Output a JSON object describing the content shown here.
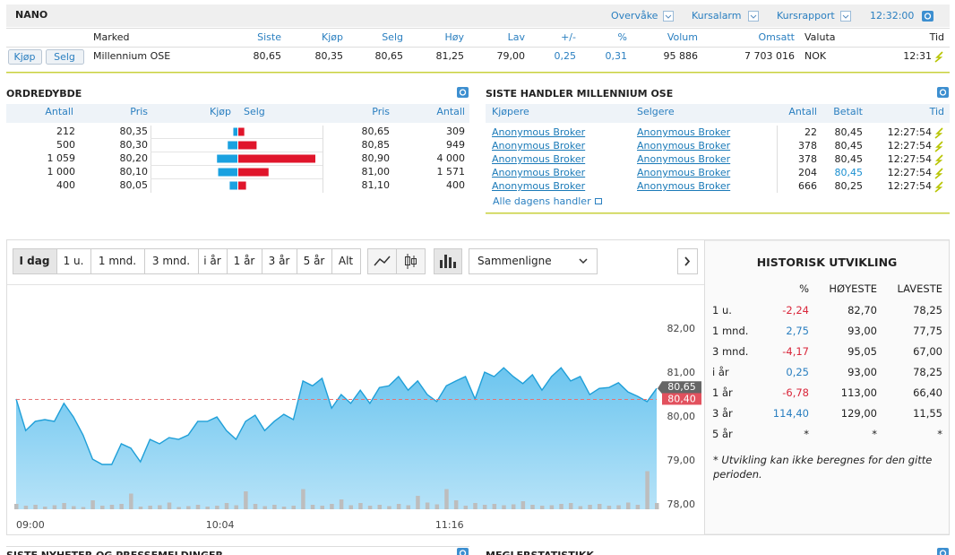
{
  "header": {
    "title": "NANO",
    "links": [
      "Overvåke",
      "Kursalarm",
      "Kursrapport"
    ],
    "time": "12:32:00"
  },
  "quote": {
    "columns": [
      "Marked",
      "Siste",
      "Kjøp",
      "Selg",
      "Høy",
      "Lav",
      "+/-",
      "%",
      "Volum",
      "Omsatt",
      "Valuta",
      "Tid"
    ],
    "buttons": [
      "Kjøp",
      "Selg"
    ],
    "row": [
      "Millennium OSE",
      "80,65",
      "80,35",
      "80,65",
      "81,25",
      "79,00",
      "0,25",
      "0,31",
      "95 886",
      "7 703 016",
      "NOK",
      "12:31"
    ]
  },
  "order_depth": {
    "title": "ORDREDYBDE",
    "columns": [
      "Antall",
      "Pris",
      "Kjøp",
      "Selg",
      "Pris",
      "Antall"
    ],
    "buy_qty": [
      212,
      500,
      1059,
      1000,
      400
    ],
    "buy_qty_labels": [
      "212",
      "500",
      "1 059",
      "1 000",
      "400"
    ],
    "buy_price": [
      "80,35",
      "80,30",
      "80,20",
      "80,10",
      "80,05"
    ],
    "sell_price": [
      "80,65",
      "80,85",
      "80,90",
      "81,00",
      "81,10"
    ],
    "sell_qty": [
      309,
      949,
      4000,
      1571,
      400
    ],
    "sell_qty_labels": [
      "309",
      "949",
      "4 000",
      "1 571",
      "400"
    ],
    "buy_color": "#1aa1e0",
    "sell_color": "#e0152b"
  },
  "trades": {
    "title": "SISTE HANDLER MILLENNIUM OSE",
    "columns": [
      "Kjøpere",
      "Selgere",
      "Antall",
      "Betalt",
      "Tid"
    ],
    "rows": [
      [
        "Anonymous Broker",
        "Anonymous Broker",
        "22",
        "80,45",
        "12:27:54"
      ],
      [
        "Anonymous Broker",
        "Anonymous Broker",
        "378",
        "80,45",
        "12:27:54"
      ],
      [
        "Anonymous Broker",
        "Anonymous Broker",
        "378",
        "80,45",
        "12:27:54"
      ],
      [
        "Anonymous Broker",
        "Anonymous Broker",
        "204",
        "80,45",
        "12:27:54"
      ],
      [
        "Anonymous Broker",
        "Anonymous Broker",
        "666",
        "80,25",
        "12:27:54"
      ]
    ],
    "price_colors": [
      "#222",
      "#222",
      "#222",
      "#1a8fd0",
      "#222"
    ],
    "link": "Alle dagens handler"
  },
  "toolbar": {
    "periods": [
      "I dag",
      "1 u.",
      "1 mnd.",
      "3 mnd.",
      "i år",
      "1 år",
      "3 år",
      "5 år",
      "Alt"
    ],
    "selected": 0,
    "compare": "Sammenligne"
  },
  "history": {
    "title": "HISTORISK UTVIKLING",
    "columns": [
      "%",
      "HØYESTE",
      "LAVESTE"
    ],
    "rows": [
      [
        "1 u.",
        "-2,24",
        "82,70",
        "78,25"
      ],
      [
        "1 mnd.",
        "2,75",
        "93,00",
        "77,75"
      ],
      [
        "3 mnd.",
        "-4,17",
        "95,05",
        "67,00"
      ],
      [
        "i år",
        "0,25",
        "93,00",
        "78,25"
      ],
      [
        "1 år",
        "-6,78",
        "113,00",
        "66,40"
      ],
      [
        "3 år",
        "114,40",
        "129,00",
        "11,55"
      ],
      [
        "5 år",
        "*",
        "*",
        "*"
      ]
    ],
    "note": "* Utvikling kan ikke beregnes for den gitte perioden."
  },
  "sections": [
    "SISTE NYHETER OG PRESSEMELDINGER",
    "MEGLERSTATISTIKK"
  ],
  "chart_data": {
    "type": "area",
    "x": [
      "09:00",
      "09:03",
      "09:06",
      "09:09",
      "09:12",
      "09:15",
      "09:18",
      "09:21",
      "09:24",
      "09:27",
      "09:30",
      "09:33",
      "09:36",
      "09:39",
      "09:42",
      "09:45",
      "09:48",
      "09:51",
      "09:54",
      "09:57",
      "10:00",
      "10:03",
      "10:06",
      "10:09",
      "10:12",
      "10:15",
      "10:18",
      "10:21",
      "10:24",
      "10:27",
      "10:30",
      "10:33",
      "10:36",
      "10:39",
      "10:42",
      "10:45",
      "10:48",
      "10:51",
      "10:54",
      "10:57",
      "11:00",
      "11:03",
      "11:06",
      "11:09",
      "11:12",
      "11:15",
      "11:18",
      "11:21",
      "11:24",
      "11:27",
      "11:30",
      "11:33",
      "11:36",
      "11:39",
      "11:42",
      "11:45",
      "11:48",
      "11:51",
      "11:54",
      "11:57",
      "12:00",
      "12:03",
      "12:06",
      "12:09",
      "12:12",
      "12:15",
      "12:18",
      "12:21"
    ],
    "series": [
      {
        "color": "#1f9fd8",
        "values": [
          80.41,
          79.69,
          79.9,
          79.94,
          79.9,
          80.31,
          80.0,
          79.59,
          79.04,
          78.92,
          78.92,
          79.39,
          79.29,
          78.98,
          79.49,
          79.39,
          79.53,
          79.49,
          79.59,
          79.9,
          79.9,
          80.0,
          79.69,
          79.49,
          79.9,
          80.04,
          79.69,
          79.9,
          80.06,
          79.94,
          80.82,
          80.71,
          80.88,
          80.2,
          80.51,
          80.31,
          80.61,
          80.31,
          80.67,
          80.71,
          80.92,
          80.61,
          80.82,
          80.51,
          80.35,
          80.71,
          80.82,
          80.92,
          80.41,
          81.02,
          80.92,
          81.12,
          80.92,
          80.76,
          80.96,
          80.61,
          80.92,
          81.12,
          80.82,
          80.92,
          80.51,
          80.65,
          80.67,
          80.78,
          80.57,
          80.47,
          80.35,
          80.65
        ]
      },
      {
        "color": "#bdbdbd",
        "axis": "y2",
        "values": [
          12,
          8,
          10,
          6,
          9,
          14,
          7,
          5,
          20,
          8,
          10,
          12,
          35,
          6,
          8,
          9,
          15,
          5,
          7,
          10,
          6,
          8,
          14,
          9,
          40,
          12,
          7,
          10,
          6,
          8,
          45,
          10,
          8,
          12,
          22,
          9,
          14,
          8,
          10,
          7,
          12,
          9,
          30,
          15,
          11,
          45,
          20,
          8,
          14,
          10,
          12,
          9,
          11,
          18,
          10,
          8,
          9,
          12,
          14,
          7,
          10,
          12,
          8,
          9,
          15,
          10,
          85,
          14
        ]
      }
    ],
    "xlim": [
      "09:00",
      "12:21"
    ],
    "xticks": [
      "09:00",
      "10:04",
      "11:16"
    ],
    "ylim": [
      77.9,
      83.0
    ],
    "yticks": [
      {
        "value": 78,
        "label": "78,00"
      },
      {
        "value": 79,
        "label": "79,00"
      },
      {
        "value": 80,
        "label": "80,00"
      },
      {
        "value": 81,
        "label": "81,00"
      },
      {
        "value": 82,
        "label": "82,00"
      }
    ],
    "y2lim": [
      0,
      100
    ],
    "last": {
      "value": 80.65,
      "label": "80,65"
    },
    "reference": {
      "value": 80.4,
      "label": "80,40"
    },
    "grid": false
  }
}
